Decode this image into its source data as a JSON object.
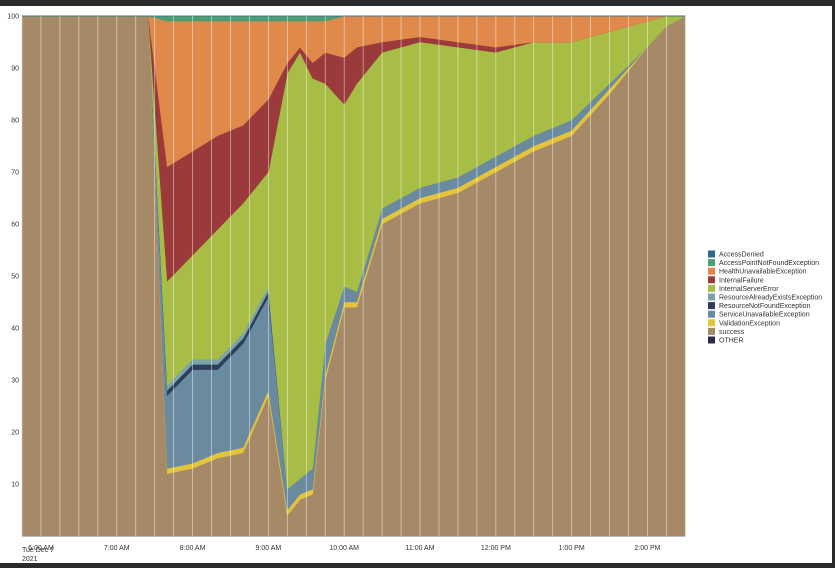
{
  "chart_data": {
    "type": "area",
    "stacked": "100%",
    "title": "",
    "xlabel": "",
    "ylabel": "",
    "ylim": [
      0,
      100
    ],
    "yticks": [
      10,
      20,
      30,
      40,
      50,
      60,
      70,
      80,
      90,
      100
    ],
    "grid": true,
    "legend_position": "right",
    "date_label": "Tue Dec 7",
    "year_label": "2021",
    "xticks": [
      "6:00 AM",
      "7:00 AM",
      "8:00 AM",
      "9:00 AM",
      "10:00 AM",
      "11:00 AM",
      "12:00 PM",
      "1:00 PM",
      "2:00 PM"
    ],
    "x": [
      "05:45",
      "07:00",
      "07:25",
      "07:40",
      "08:00",
      "08:20",
      "08:40",
      "09:00",
      "09:15",
      "09:25",
      "09:35",
      "09:45",
      "10:00",
      "10:10",
      "10:30",
      "11:00",
      "11:30",
      "12:00",
      "12:30",
      "13:00",
      "13:30",
      "14:00",
      "14:15",
      "14:30"
    ],
    "series": [
      {
        "name": "AccessDenied",
        "color": "#2f6a8a",
        "values": [
          0,
          0,
          0,
          0,
          0,
          0,
          0,
          0,
          0,
          0,
          0,
          0,
          0,
          0,
          0,
          0,
          0,
          0,
          0,
          0,
          0,
          0,
          0,
          0
        ]
      },
      {
        "name": "AccessPointNotFoundException",
        "color": "#4f9d72",
        "values": [
          0,
          0,
          0,
          1,
          1,
          1,
          1,
          1,
          1,
          1,
          1,
          1,
          0,
          0,
          0,
          0,
          0,
          0,
          0,
          0,
          0,
          0,
          0,
          0
        ]
      },
      {
        "name": "HealthUnavailableException",
        "color": "#e0894a",
        "values": [
          0,
          0,
          0,
          28,
          25,
          22,
          20,
          15,
          8,
          5,
          8,
          6,
          8,
          6,
          5,
          4,
          5,
          6,
          5,
          5,
          3,
          1,
          0,
          0
        ]
      },
      {
        "name": "InternalFailure",
        "color": "#9b3a3a",
        "values": [
          0,
          0,
          0,
          22,
          20,
          18,
          15,
          14,
          2,
          1,
          3,
          6,
          9,
          7,
          2,
          1,
          1,
          1,
          0,
          0,
          0,
          0,
          0,
          0
        ]
      },
      {
        "name": "InternalServerError",
        "color": "#a8bd45",
        "values": [
          0,
          0,
          0,
          20,
          20,
          25,
          25,
          22,
          80,
          82,
          75,
          50,
          35,
          40,
          30,
          28,
          25,
          20,
          18,
          15,
          10,
          5,
          2,
          0
        ]
      },
      {
        "name": "ResourceAlreadyExistsException",
        "color": "#7aa4a8",
        "values": [
          0,
          0,
          0,
          1,
          1,
          1,
          1,
          1,
          0,
          0,
          0,
          0,
          0,
          0,
          0,
          0,
          0,
          0,
          0,
          0,
          0,
          0,
          0,
          0
        ]
      },
      {
        "name": "ResourceNotFoundException",
        "color": "#2d3d5c",
        "values": [
          0,
          0,
          0,
          1,
          1,
          1,
          1,
          1,
          0,
          0,
          0,
          0,
          0,
          0,
          0,
          0,
          0,
          0,
          0,
          0,
          0,
          0,
          0,
          0
        ]
      },
      {
        "name": "ServiceUnavailableException",
        "color": "#6a8aa0",
        "values": [
          0,
          0,
          0,
          14,
          18,
          16,
          20,
          18,
          4,
          3,
          4,
          6,
          3,
          2,
          2,
          2,
          2,
          2,
          2,
          2,
          1,
          0,
          0,
          0
        ]
      },
      {
        "name": "ValidationException",
        "color": "#e3c43a",
        "values": [
          0,
          0,
          0,
          1,
          1,
          1,
          1,
          1,
          1,
          1,
          1,
          1,
          1,
          1,
          1,
          1,
          1,
          1,
          1,
          1,
          1,
          0,
          0,
          0
        ]
      },
      {
        "name": "success",
        "color": "#a68a68",
        "values": [
          100,
          100,
          100,
          12,
          13,
          15,
          16,
          27,
          4,
          7,
          8,
          30,
          44,
          44,
          60,
          64,
          66,
          70,
          74,
          77,
          85,
          94,
          98,
          100
        ]
      },
      {
        "name": "OTHER",
        "color": "#2c2a4a",
        "values": [
          0,
          0,
          0,
          0,
          0,
          0,
          0,
          0,
          0,
          0,
          0,
          0,
          0,
          0,
          0,
          0,
          0,
          0,
          0,
          0,
          0,
          0,
          0,
          0
        ]
      }
    ]
  }
}
